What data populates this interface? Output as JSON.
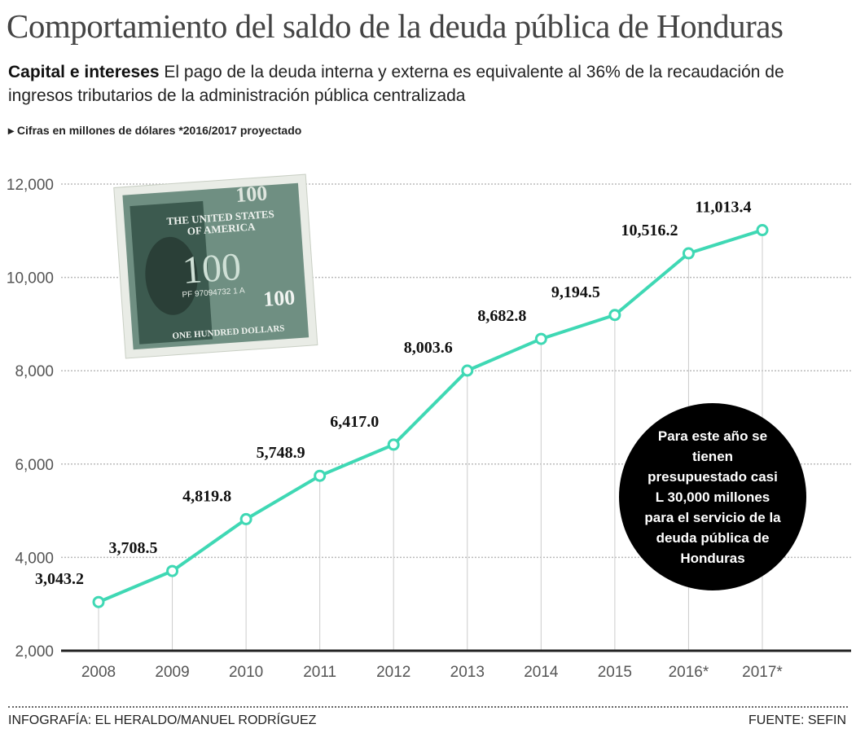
{
  "header": {
    "title": "Comportamiento del saldo de la deuda pública de Honduras",
    "subtitle_bold": "Capital e intereses",
    "subtitle_text": " El pago de la deuda interna y externa es equivalente al 36% de la recaudación de ingresos tributarios de la administración pública centralizada",
    "note": "▸ Cifras en millones de dólares *2016/2017 proyectado"
  },
  "chart_data": {
    "type": "line",
    "title": "",
    "xlabel": "",
    "ylabel": "",
    "categories": [
      "2008",
      "2009",
      "2010",
      "2011",
      "2012",
      "2013",
      "2014",
      "2015",
      "2016*",
      "2017*"
    ],
    "values": [
      3043.2,
      3708.5,
      4819.8,
      5748.9,
      6417.0,
      8003.6,
      8682.8,
      9194.5,
      10516.2,
      11013.4
    ],
    "data_labels": [
      "3,043.2",
      "3,708.5",
      "4,819.8",
      "5,748.9",
      "6,417.0",
      "8,003.6",
      "8,682.8",
      "9,194.5",
      "10,516.2",
      "11,013.4"
    ],
    "ylim": [
      2000,
      12000
    ],
    "yticks": [
      2000,
      4000,
      6000,
      8000,
      10000,
      12000
    ],
    "ytick_labels": [
      "2,000",
      "4,000",
      "6,000",
      "8,000",
      "10,000",
      "12,000"
    ],
    "grid": true,
    "line_color": "#3fd8b4",
    "marker": "hollow-circle"
  },
  "callout": "Para este año se tienen presupuestado casi L 30,000 millones para el servicio de la deuda pública de Honduras",
  "bill_text": {
    "top": "100",
    "line1": "THE UNITED STATES",
    "line2": "OF AMERICA",
    "serial": "PF 97094732 1 A",
    "bottom": "ONE HUNDRED DOLLARS",
    "corner": "100"
  },
  "footer": {
    "credit": "INFOGRAFÍA: EL HERALDO/MANUEL RODRÍGUEZ",
    "source": "FUENTE: SEFIN"
  }
}
